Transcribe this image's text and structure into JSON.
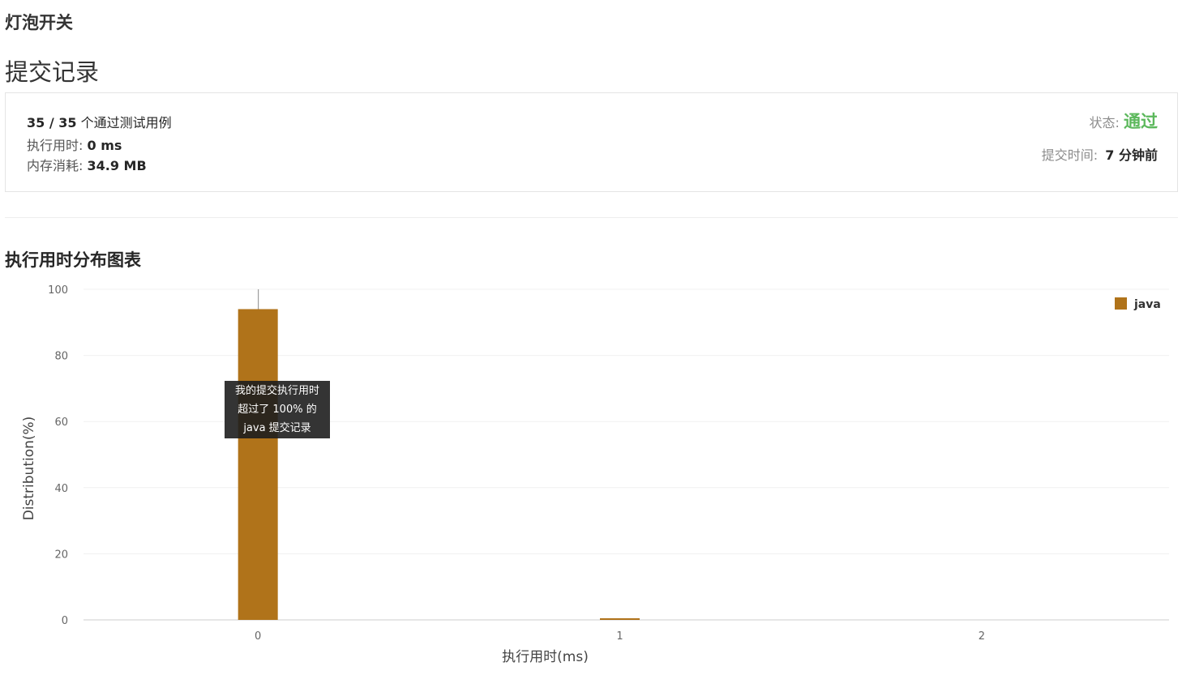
{
  "problem": {
    "title": "灯泡开关"
  },
  "submission": {
    "section_title": "提交记录",
    "passed": "35 / 35",
    "passed_suffix": "个通过测试用例",
    "runtime_label": "执行用时:",
    "runtime_value": "0 ms",
    "memory_label": "内存消耗:",
    "memory_value": "34.9 MB",
    "status_label": "状态:",
    "status_value": "通过",
    "submit_time_label": "提交时间:",
    "submit_time_value": "7 分钟前"
  },
  "chart_section": {
    "title": "执行用时分布图表"
  },
  "tooltip": {
    "line1": "我的提交执行用时",
    "line2": "超过了 100% 的",
    "line3": "java 提交记录"
  },
  "colors": {
    "bar": "#b0731a",
    "accepted": "#5cb85c"
  },
  "chart_data": {
    "type": "bar",
    "categories": [
      "0",
      "1",
      "2"
    ],
    "series": [
      {
        "name": "java",
        "values": [
          94,
          0.5,
          0
        ]
      }
    ],
    "xlabel": "执行用时(ms)",
    "ylabel": "Distribution(%)",
    "ylim": [
      0,
      100
    ],
    "yticks": [
      0,
      20,
      40,
      60,
      80,
      100
    ],
    "grid": true,
    "legend": "top-right",
    "my_submission_category": "0"
  }
}
